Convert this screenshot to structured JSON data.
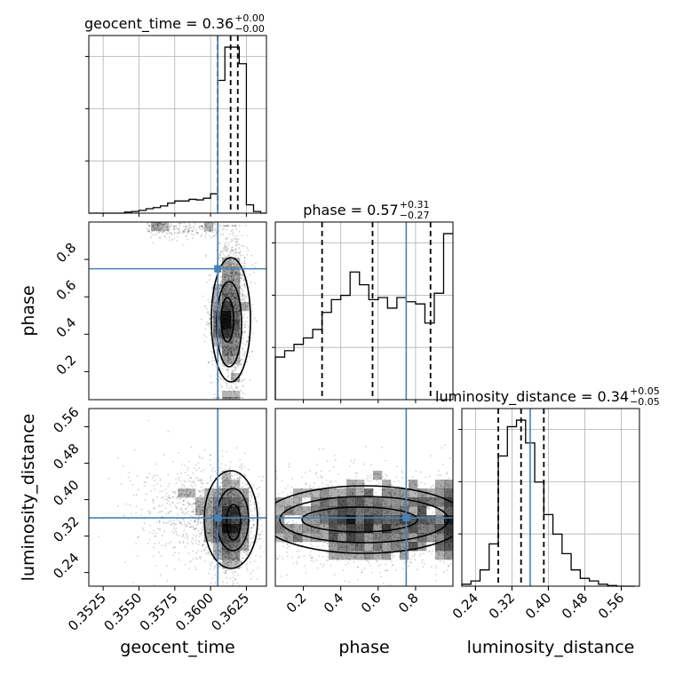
{
  "chart_data": {
    "type": "corner",
    "parameters": [
      "geocent_time",
      "phase",
      "luminosity_distance"
    ],
    "axis_labels": {
      "geocent_time": "geocent_time",
      "phase": "phase",
      "luminosity_distance": "luminosity_distance"
    },
    "ranges": {
      "geocent_time": [
        0.3515,
        0.3639
      ],
      "phase": [
        0.05,
        1.0
      ],
      "luminosity_distance": [
        0.21,
        0.6
      ]
    },
    "ticks": {
      "geocent_time": [
        0.3525,
        0.355,
        0.3575,
        0.36,
        0.3625
      ],
      "phase": [
        0.2,
        0.4,
        0.6,
        0.8
      ],
      "luminosity_distance": [
        0.24,
        0.32,
        0.4,
        0.48,
        0.56
      ]
    },
    "tick_labels": {
      "geocent_time": [
        "0.3525",
        "0.3550",
        "0.3575",
        "0.3600",
        "0.3625"
      ],
      "phase": [
        "0.2",
        "0.4",
        "0.6",
        "0.8"
      ],
      "luminosity_distance": [
        "0.24",
        "0.32",
        "0.40",
        "0.48",
        "0.56"
      ]
    },
    "titles": [
      {
        "param": "geocent_time",
        "prefix": "geocent_time = 0.36",
        "plus": "+0.00",
        "minus": "−0.00"
      },
      {
        "param": "phase",
        "prefix": "phase = 0.57",
        "plus": "+0.31",
        "minus": "−0.27"
      },
      {
        "param": "luminosity_distance",
        "prefix": "luminosity_distance = 0.34",
        "plus": "+0.05",
        "minus": "−0.05"
      }
    ],
    "quantiles": {
      "geocent_time": [
        0.3605,
        0.3614,
        0.3619
      ],
      "phase": [
        0.3,
        0.57,
        0.88
      ],
      "luminosity_distance": [
        0.29,
        0.34,
        0.39
      ]
    },
    "truths": {
      "geocent_time": 0.3605,
      "phase": 0.75,
      "luminosity_distance": 0.36
    },
    "histograms": {
      "geocent_time": {
        "edges": [
          0.3515,
          0.352,
          0.3525,
          0.353,
          0.3535,
          0.354,
          0.3545,
          0.355,
          0.3555,
          0.356,
          0.3565,
          0.357,
          0.3575,
          0.358,
          0.3585,
          0.359,
          0.3595,
          0.36,
          0.3605,
          0.361,
          0.3615,
          0.362,
          0.3625,
          0.363,
          0.3635,
          0.3639
        ],
        "counts": [
          0,
          0,
          0,
          0,
          0,
          2,
          3,
          5,
          8,
          10,
          13,
          18,
          22,
          22,
          25,
          24,
          27,
          35,
          240,
          300,
          300,
          270,
          15,
          3,
          0
        ]
      },
      "phase": {
        "edges": [
          0.05,
          0.1,
          0.15,
          0.2,
          0.25,
          0.3,
          0.35,
          0.4,
          0.45,
          0.5,
          0.55,
          0.6,
          0.65,
          0.7,
          0.75,
          0.8,
          0.85,
          0.9,
          0.95,
          1.0
        ],
        "counts": [
          100,
          115,
          130,
          145,
          165,
          205,
          235,
          245,
          300,
          270,
          235,
          240,
          215,
          240,
          230,
          225,
          180,
          250,
          390
        ]
      },
      "luminosity_distance": {
        "edges": [
          0.21,
          0.23,
          0.25,
          0.27,
          0.29,
          0.31,
          0.33,
          0.35,
          0.37,
          0.39,
          0.41,
          0.43,
          0.45,
          0.47,
          0.49,
          0.51,
          0.53,
          0.55,
          0.57,
          0.59
        ],
        "counts": [
          3,
          8,
          25,
          65,
          200,
          245,
          255,
          220,
          160,
          110,
          80,
          50,
          25,
          12,
          8,
          3,
          1,
          0,
          0
        ]
      }
    },
    "pairs": [
      {
        "x": "geocent_time",
        "y": "phase",
        "samples": 2200
      },
      {
        "x": "geocent_time",
        "y": "luminosity_distance",
        "samples": 2200
      },
      {
        "x": "phase",
        "y": "luminosity_distance",
        "samples": 2200
      }
    ],
    "colors": {
      "truth": "#4682b4",
      "hist": "#000000",
      "grid": "#b0b0b0",
      "points": "#000000"
    },
    "grid": true
  }
}
